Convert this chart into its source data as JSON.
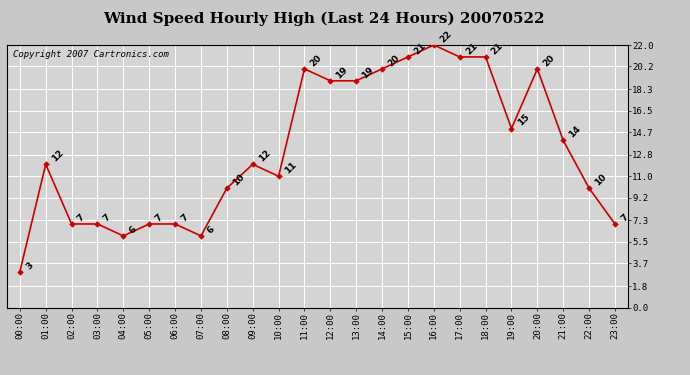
{
  "title": "Wind Speed Hourly High (Last 24 Hours) 20070522",
  "copyright_text": "Copyright 2007 Cartronics.com",
  "hours": [
    0,
    1,
    2,
    3,
    4,
    5,
    6,
    7,
    8,
    9,
    10,
    11,
    12,
    13,
    14,
    15,
    16,
    17,
    18,
    19,
    20,
    21,
    22,
    23
  ],
  "values": [
    3,
    12,
    7,
    7,
    6,
    7,
    7,
    6,
    10,
    12,
    11,
    20,
    19,
    19,
    20,
    21,
    22,
    21,
    21,
    15,
    20,
    14,
    10,
    7
  ],
  "xlabels": [
    "00:00",
    "01:00",
    "02:00",
    "03:00",
    "04:00",
    "05:00",
    "06:00",
    "07:00",
    "08:00",
    "09:00",
    "10:00",
    "11:00",
    "12:00",
    "13:00",
    "14:00",
    "15:00",
    "16:00",
    "17:00",
    "18:00",
    "19:00",
    "20:00",
    "21:00",
    "22:00",
    "23:00"
  ],
  "ylim": [
    0.0,
    22.0
  ],
  "yticks": [
    0.0,
    1.8,
    3.7,
    5.5,
    7.3,
    9.2,
    11.0,
    12.8,
    14.7,
    16.5,
    18.3,
    20.2,
    22.0
  ],
  "line_color": "#cc0000",
  "marker_color": "#cc0000",
  "fig_bg_color": "#c8c8c8",
  "plot_bg_color": "#d4d4d4",
  "grid_color": "#ffffff",
  "title_fontsize": 11,
  "tick_fontsize": 6.5,
  "label_fontsize": 6.5,
  "copyright_fontsize": 6.5,
  "label_rotation": 45
}
